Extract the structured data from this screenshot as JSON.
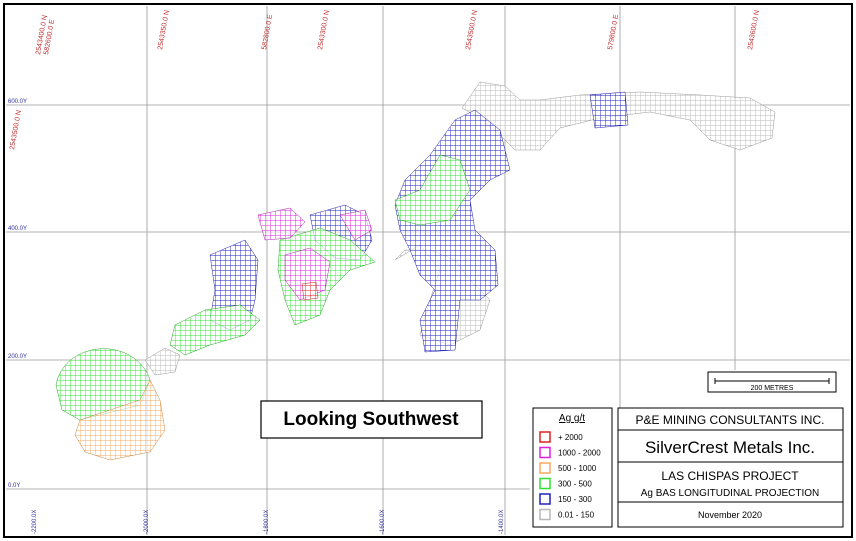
{
  "grid_labels": {
    "top": [
      "2543400.0 N",
      "582600.0 E",
      "2543350.0 N",
      "582800.0 E",
      "2543300.0 N",
      "2543500.0 N",
      "579800.0 E",
      "2543600.0 N"
    ],
    "left": [
      "2543500.0 N"
    ],
    "y": [
      "600.0Y",
      "400.0Y",
      "200.0Y",
      "0.0Y"
    ],
    "x": [
      "-2200.0X",
      "-2000.0X",
      "-1800.0X",
      "-1600.0X",
      "-1400.0X"
    ]
  },
  "scale_bar": "200 METRES",
  "view_label": "Looking Southwest",
  "legend": {
    "title": "Ag g/t",
    "items": [
      {
        "label": "+ 2000",
        "color": "#e02020"
      },
      {
        "label": "1000 - 2000",
        "color": "#e020e0"
      },
      {
        "label": "500 - 1000",
        "color": "#f5a860"
      },
      {
        "label": "300 - 500",
        "color": "#30e030"
      },
      {
        "label": "150 - 300",
        "color": "#2020c0"
      },
      {
        "label": "0.01 - 150",
        "color": "#b8b8b8"
      }
    ]
  },
  "title_block": {
    "consultant": "P&E MINING CONSULTANTS INC.",
    "client": "SilverCrest Metals Inc.",
    "project": "LAS CHISPAS PROJECT",
    "description": "Ag BAS LONGITUDINAL PROJECTION",
    "date": "November 2020"
  }
}
